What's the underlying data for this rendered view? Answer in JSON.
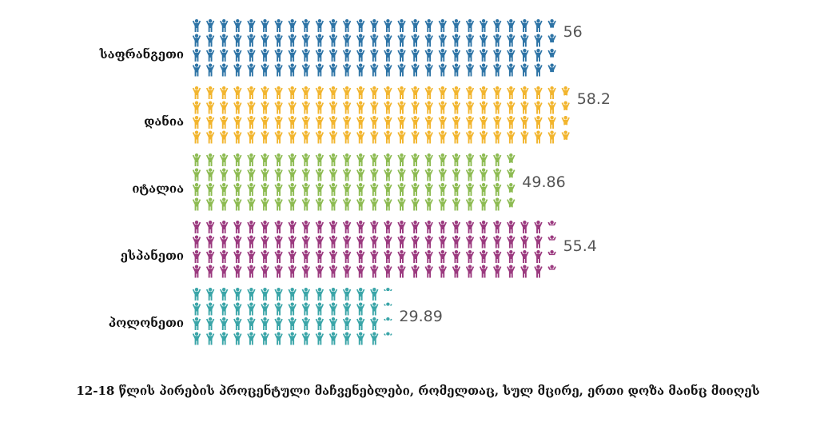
{
  "chart_data": {
    "type": "pictograph",
    "title": "12-18 წლის პირების პროცენტული მაჩვენებლები, რომელთაც, სულ მცირე, ერთი დოზა მაინც მიიღეს",
    "categories": [
      "საფრანგეთი",
      "დანია",
      "იტალია",
      "ესპანეთი",
      "პოლონეთი"
    ],
    "values": [
      56,
      58.2,
      49.86,
      55.4,
      29.89
    ],
    "value_labels": [
      "56",
      "58.2",
      "49.86",
      "55.4",
      "29.89"
    ],
    "colors": [
      "#2e74a6",
      "#f2b52e",
      "#8dbb52",
      "#9b3a7f",
      "#3aa5a8"
    ],
    "icon": "person-icon",
    "icons_per_row_unit": 1,
    "icon_rows_per_category": 4,
    "xlabel": "",
    "ylabel": "",
    "legend": "none",
    "grid": false
  }
}
